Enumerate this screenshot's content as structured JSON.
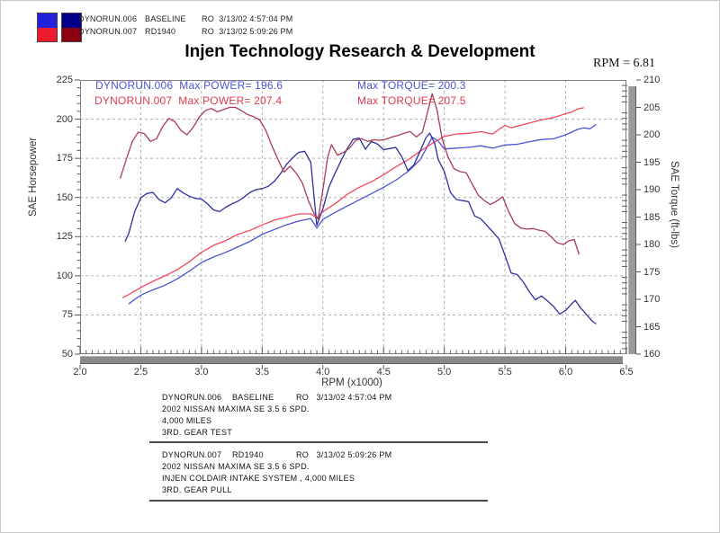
{
  "header": {
    "title": "Injen Technology Research & Development",
    "rpm_readout": "RPM = 6.81",
    "runs": [
      {
        "file": "DYNORUN.006",
        "label": "BASELINE",
        "stamp": "RO  3/13/02 4:57:04 PM"
      },
      {
        "file": "DYNORUN.007",
        "label": "RD1940",
        "stamp": "RO  3/13/02 5:09:26 PM"
      }
    ],
    "swatch_colors": {
      "run1_power": "#2222dd",
      "run1_torque": "#00008b",
      "run2_power": "#ee1c2e",
      "run2_torque": "#8b0013"
    }
  },
  "chart_data": {
    "type": "line",
    "title": "",
    "xlabel": "RPM (x1000)",
    "ylabel_left": "SAE Horsepower",
    "ylabel_right": "SAE Torque (ft-lbs)",
    "xlim": [
      2.0,
      6.5
    ],
    "ylim_left": [
      50,
      225
    ],
    "ylim_right": [
      160,
      210
    ],
    "xticks": [
      "2.0",
      "2.5",
      "3.0",
      "3.5",
      "4.0",
      "4.5",
      "5.0",
      "5.5",
      "6.0",
      "6.5"
    ],
    "yticks_left": [
      225,
      200,
      175,
      150,
      125,
      100,
      75,
      50
    ],
    "yticks_right": [
      210,
      205,
      200,
      195,
      190,
      185,
      180,
      175,
      170,
      165,
      160
    ],
    "x_minor_step": 0.05,
    "y_left_minor_step": 5,
    "y_right_minor_step": 1,
    "grid": "dashed",
    "grid_color": "#b0b0b0",
    "legend_position": "top-left-inside",
    "annotations": [
      {
        "run_power": "DYNORUN.006  Max POWER= 196.6",
        "torque": "Max TORQUE= 200.3",
        "color": "#4a53d5"
      },
      {
        "run_power": "DYNORUN.007  Max POWER= 207.4",
        "torque": "Max TORQUE= 207.5",
        "color": "#e03a50"
      }
    ],
    "series": [
      {
        "id": "dynorun006-power",
        "name": "DYNORUN.006 Horsepower",
        "axis": "left",
        "color": "#4a53d5",
        "points": [
          [
            2.4,
            82
          ],
          [
            2.45,
            85
          ],
          [
            2.5,
            87.5
          ],
          [
            2.55,
            89.5
          ],
          [
            2.6,
            91
          ],
          [
            2.7,
            94
          ],
          [
            2.8,
            98
          ],
          [
            2.9,
            103
          ],
          [
            3.0,
            108.5
          ],
          [
            3.1,
            112
          ],
          [
            3.2,
            115
          ],
          [
            3.3,
            118.5
          ],
          [
            3.4,
            122
          ],
          [
            3.5,
            126.5
          ],
          [
            3.6,
            129.5
          ],
          [
            3.7,
            132.5
          ],
          [
            3.8,
            135
          ],
          [
            3.9,
            136.5
          ],
          [
            3.95,
            130.5
          ],
          [
            4.0,
            136
          ],
          [
            4.1,
            140.5
          ],
          [
            4.2,
            144.5
          ],
          [
            4.3,
            148.5
          ],
          [
            4.4,
            152.5
          ],
          [
            4.5,
            156.5
          ],
          [
            4.6,
            161
          ],
          [
            4.7,
            166.5
          ],
          [
            4.8,
            174
          ],
          [
            4.85,
            181
          ],
          [
            4.9,
            188.5
          ],
          [
            4.95,
            186
          ],
          [
            5.0,
            181
          ],
          [
            5.1,
            181.5
          ],
          [
            5.2,
            182
          ],
          [
            5.3,
            183
          ],
          [
            5.4,
            181.5
          ],
          [
            5.5,
            183.5
          ],
          [
            5.6,
            184
          ],
          [
            5.7,
            185.5
          ],
          [
            5.8,
            187
          ],
          [
            5.9,
            187.5
          ],
          [
            6.0,
            190
          ],
          [
            6.1,
            193.5
          ],
          [
            6.15,
            194.5
          ],
          [
            6.2,
            193.8
          ],
          [
            6.25,
            196.6
          ]
        ]
      },
      {
        "id": "dynorun007-power",
        "name": "DYNORUN.007 Horsepower",
        "axis": "left",
        "color": "#f2485c",
        "points": [
          [
            2.35,
            86
          ],
          [
            2.4,
            88
          ],
          [
            2.5,
            92.5
          ],
          [
            2.6,
            96.5
          ],
          [
            2.7,
            100
          ],
          [
            2.8,
            104
          ],
          [
            2.9,
            109
          ],
          [
            3.0,
            115
          ],
          [
            3.1,
            119.5
          ],
          [
            3.2,
            122.5
          ],
          [
            3.3,
            126.5
          ],
          [
            3.4,
            129
          ],
          [
            3.5,
            132.5
          ],
          [
            3.6,
            135.5
          ],
          [
            3.7,
            137.5
          ],
          [
            3.8,
            139.5
          ],
          [
            3.9,
            139.5
          ],
          [
            3.95,
            137
          ],
          [
            4.0,
            141
          ],
          [
            4.1,
            146
          ],
          [
            4.2,
            152
          ],
          [
            4.3,
            156.5
          ],
          [
            4.4,
            160
          ],
          [
            4.5,
            164.5
          ],
          [
            4.6,
            169.5
          ],
          [
            4.7,
            174
          ],
          [
            4.8,
            179.5
          ],
          [
            4.9,
            184.5
          ],
          [
            5.0,
            189
          ],
          [
            5.1,
            190.5
          ],
          [
            5.2,
            191
          ],
          [
            5.3,
            192
          ],
          [
            5.4,
            190.5
          ],
          [
            5.45,
            193.5
          ],
          [
            5.5,
            196
          ],
          [
            5.55,
            194.5
          ],
          [
            5.6,
            195.5
          ],
          [
            5.7,
            197.5
          ],
          [
            5.8,
            199.5
          ],
          [
            5.9,
            201
          ],
          [
            6.0,
            203.5
          ],
          [
            6.05,
            204.5
          ],
          [
            6.1,
            206.5
          ],
          [
            6.15,
            207.4
          ]
        ]
      },
      {
        "id": "dynorun006-torque",
        "name": "DYNORUN.006 Torque",
        "axis": "right",
        "color": "#2b2f9e",
        "points": [
          [
            2.37,
            180.5
          ],
          [
            2.4,
            182
          ],
          [
            2.45,
            186
          ],
          [
            2.5,
            188.5
          ],
          [
            2.55,
            189.3
          ],
          [
            2.6,
            189.5
          ],
          [
            2.65,
            188.2
          ],
          [
            2.7,
            187.6
          ],
          [
            2.75,
            188.5
          ],
          [
            2.8,
            190.2
          ],
          [
            2.85,
            189.4
          ],
          [
            2.9,
            188.8
          ],
          [
            2.95,
            188.4
          ],
          [
            3.0,
            188.3
          ],
          [
            3.05,
            187.4
          ],
          [
            3.1,
            186.3
          ],
          [
            3.15,
            186.0
          ],
          [
            3.2,
            186.8
          ],
          [
            3.25,
            187.4
          ],
          [
            3.3,
            187.9
          ],
          [
            3.35,
            188.6
          ],
          [
            3.4,
            189.5
          ],
          [
            3.45,
            190.0
          ],
          [
            3.5,
            190.2
          ],
          [
            3.55,
            190.6
          ],
          [
            3.6,
            191.5
          ],
          [
            3.65,
            192.9
          ],
          [
            3.7,
            194.6
          ],
          [
            3.75,
            195.8
          ],
          [
            3.8,
            196.8
          ],
          [
            3.85,
            197.0
          ],
          [
            3.9,
            195.0
          ],
          [
            3.95,
            183.5
          ],
          [
            4.0,
            186.5
          ],
          [
            4.05,
            190.5
          ],
          [
            4.1,
            193.0
          ],
          [
            4.15,
            195.3
          ],
          [
            4.2,
            197.5
          ],
          [
            4.25,
            199.2
          ],
          [
            4.3,
            199.4
          ],
          [
            4.35,
            197.4
          ],
          [
            4.4,
            198.8
          ],
          [
            4.45,
            198.3
          ],
          [
            4.5,
            197.3
          ],
          [
            4.55,
            197.5
          ],
          [
            4.6,
            197.7
          ],
          [
            4.65,
            196.0
          ],
          [
            4.7,
            193.5
          ],
          [
            4.75,
            194.5
          ],
          [
            4.8,
            197.0
          ],
          [
            4.85,
            199.5
          ],
          [
            4.88,
            200.3
          ],
          [
            4.92,
            198.5
          ],
          [
            4.95,
            195.5
          ],
          [
            5.0,
            193.3
          ],
          [
            5.05,
            189.5
          ],
          [
            5.1,
            188.2
          ],
          [
            5.15,
            188.0
          ],
          [
            5.2,
            187.8
          ],
          [
            5.25,
            185.2
          ],
          [
            5.3,
            184.7
          ],
          [
            5.35,
            183.5
          ],
          [
            5.4,
            182.3
          ],
          [
            5.45,
            181.0
          ],
          [
            5.5,
            178.0
          ],
          [
            5.55,
            174.8
          ],
          [
            5.6,
            174.5
          ],
          [
            5.65,
            173.2
          ],
          [
            5.7,
            171.4
          ],
          [
            5.75,
            169.9
          ],
          [
            5.8,
            170.6
          ],
          [
            5.85,
            169.7
          ],
          [
            5.9,
            168.7
          ],
          [
            5.95,
            167.3
          ],
          [
            6.0,
            168.0
          ],
          [
            6.05,
            169.2
          ],
          [
            6.08,
            169.8
          ],
          [
            6.12,
            168.5
          ],
          [
            6.18,
            167.0
          ],
          [
            6.22,
            166.0
          ],
          [
            6.25,
            165.5
          ]
        ]
      },
      {
        "id": "dynorun007-torque",
        "name": "DYNORUN.007 Torque",
        "axis": "right",
        "color": "#a93a56",
        "points": [
          [
            2.33,
            192.0
          ],
          [
            2.38,
            195.5
          ],
          [
            2.43,
            198.8
          ],
          [
            2.48,
            200.5
          ],
          [
            2.53,
            200.2
          ],
          [
            2.58,
            198.8
          ],
          [
            2.63,
            199.3
          ],
          [
            2.68,
            201.5
          ],
          [
            2.73,
            203.0
          ],
          [
            2.78,
            202.4
          ],
          [
            2.83,
            200.8
          ],
          [
            2.88,
            200.0
          ],
          [
            2.93,
            201.3
          ],
          [
            2.98,
            203.2
          ],
          [
            3.03,
            204.4
          ],
          [
            3.08,
            204.8
          ],
          [
            3.13,
            204.2
          ],
          [
            3.18,
            204.6
          ],
          [
            3.23,
            205.0
          ],
          [
            3.28,
            205.0
          ],
          [
            3.33,
            204.4
          ],
          [
            3.38,
            203.7
          ],
          [
            3.43,
            203.3
          ],
          [
            3.48,
            202.7
          ],
          [
            3.53,
            200.8
          ],
          [
            3.58,
            198.0
          ],
          [
            3.63,
            195.5
          ],
          [
            3.68,
            193.2
          ],
          [
            3.73,
            194.3
          ],
          [
            3.78,
            193.0
          ],
          [
            3.83,
            191.3
          ],
          [
            3.88,
            188.0
          ],
          [
            3.93,
            185.5
          ],
          [
            3.96,
            184.6
          ],
          [
            4.0,
            190.0
          ],
          [
            4.04,
            196.0
          ],
          [
            4.07,
            198.2
          ],
          [
            4.12,
            196.3
          ],
          [
            4.17,
            196.8
          ],
          [
            4.22,
            197.6
          ],
          [
            4.27,
            199.0
          ],
          [
            4.32,
            199.3
          ],
          [
            4.37,
            198.8
          ],
          [
            4.42,
            199.1
          ],
          [
            4.47,
            199.0
          ],
          [
            4.52,
            199.2
          ],
          [
            4.57,
            199.6
          ],
          [
            4.62,
            199.9
          ],
          [
            4.67,
            200.3
          ],
          [
            4.72,
            200.6
          ],
          [
            4.77,
            199.6
          ],
          [
            4.82,
            200.5
          ],
          [
            4.86,
            204.0
          ],
          [
            4.9,
            207.5
          ],
          [
            4.94,
            204.5
          ],
          [
            4.98,
            199.5
          ],
          [
            5.03,
            196.0
          ],
          [
            5.08,
            193.8
          ],
          [
            5.13,
            193.3
          ],
          [
            5.18,
            193.1
          ],
          [
            5.23,
            191.0
          ],
          [
            5.28,
            189.0
          ],
          [
            5.33,
            188.0
          ],
          [
            5.38,
            187.3
          ],
          [
            5.43,
            187.9
          ],
          [
            5.48,
            188.7
          ],
          [
            5.53,
            186.0
          ],
          [
            5.58,
            183.8
          ],
          [
            5.63,
            183.0
          ],
          [
            5.68,
            182.8
          ],
          [
            5.73,
            182.9
          ],
          [
            5.78,
            182.6
          ],
          [
            5.83,
            182.4
          ],
          [
            5.88,
            181.4
          ],
          [
            5.93,
            180.3
          ],
          [
            5.98,
            180.0
          ],
          [
            6.03,
            180.7
          ],
          [
            6.07,
            180.9
          ],
          [
            6.11,
            178.2
          ]
        ]
      }
    ]
  },
  "footer": {
    "blocks": [
      {
        "file": "DYNORUN.006",
        "label": "BASELINE",
        "stamp": "RO   3/13/02 4:57:04 PM",
        "lines": [
          "2002 NISSAN MAXIMA SE 3.5 6 SPD.",
          "4,000 MILES",
          "3RD. GEAR TEST"
        ]
      },
      {
        "file": "DYNORUN.007",
        "label": "RD1940",
        "stamp": "RO   3/13/02 5:09:26 PM",
        "lines": [
          "2002 NISSAN MAXIMA SE 3.5 6 SPD.",
          "INJEN COLDAIR INTAKE SYSTEM , 4,000 MILES",
          "3RD. GEAR PULL"
        ]
      }
    ]
  }
}
